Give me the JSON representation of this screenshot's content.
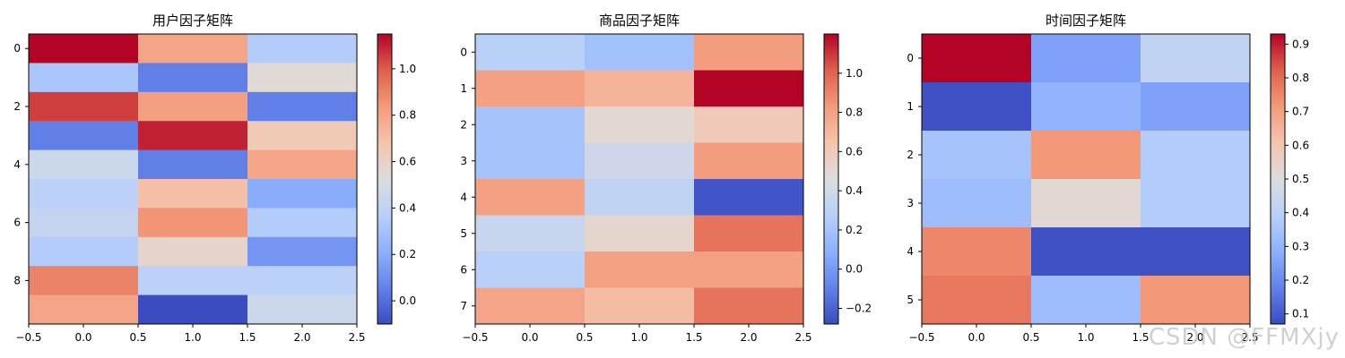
{
  "chart_data": [
    {
      "type": "heatmap",
      "title": "用户因子矩阵",
      "rows": 10,
      "cols": 3,
      "values": [
        [
          1.15,
          0.8,
          0.35
        ],
        [
          0.32,
          0.05,
          0.55
        ],
        [
          1.05,
          0.82,
          0.05
        ],
        [
          0.05,
          1.1,
          0.65
        ],
        [
          0.45,
          0.05,
          0.8
        ],
        [
          0.38,
          0.7,
          0.2
        ],
        [
          0.42,
          0.85,
          0.35
        ],
        [
          0.35,
          0.58,
          0.12
        ],
        [
          0.9,
          0.38,
          0.38
        ],
        [
          0.8,
          -0.1,
          0.45
        ]
      ],
      "vmin": -0.1,
      "vmax": 1.15,
      "x_ticks": [
        "−0.5",
        "0.0",
        "0.5",
        "1.0",
        "1.5",
        "2.0",
        "2.5"
      ],
      "y_ticks": [
        "0",
        "2",
        "4",
        "6",
        "8"
      ],
      "colorbar_ticks": [
        "0.0",
        "0.2",
        "0.4",
        "0.6",
        "0.8",
        "1.0"
      ],
      "colorbar_tick_values": [
        0.0,
        0.2,
        0.4,
        0.6,
        0.8,
        1.0
      ],
      "colormap": "coolwarm"
    },
    {
      "type": "heatmap",
      "title": "商品因子矩阵",
      "rows": 8,
      "cols": 3,
      "values": [
        [
          0.28,
          0.18,
          0.82
        ],
        [
          0.8,
          0.72,
          1.2
        ],
        [
          0.2,
          0.5,
          0.6
        ],
        [
          0.2,
          0.38,
          0.82
        ],
        [
          0.8,
          0.32,
          -0.25
        ],
        [
          0.35,
          0.52,
          0.95
        ],
        [
          0.28,
          0.8,
          0.8
        ],
        [
          0.78,
          0.68,
          0.95
        ]
      ],
      "vmin": -0.28,
      "vmax": 1.2,
      "x_ticks": [
        "−0.5",
        "0.0",
        "0.5",
        "1.0",
        "1.5",
        "2.0",
        "2.5"
      ],
      "y_ticks": [
        "0",
        "1",
        "2",
        "3",
        "4",
        "5",
        "6",
        "7"
      ],
      "colorbar_ticks": [
        "−0.2",
        "0.0",
        "0.2",
        "0.4",
        "0.6",
        "0.8",
        "1.0"
      ],
      "colorbar_tick_values": [
        -0.2,
        0.0,
        0.2,
        0.4,
        0.6,
        0.8,
        1.0
      ],
      "colormap": "coolwarm"
    },
    {
      "type": "heatmap",
      "title": "时间因子矩阵",
      "rows": 6,
      "cols": 3,
      "values": [
        [
          0.93,
          0.25,
          0.42
        ],
        [
          0.08,
          0.3,
          0.25
        ],
        [
          0.35,
          0.72,
          0.38
        ],
        [
          0.33,
          0.52,
          0.38
        ],
        [
          0.75,
          0.08,
          0.08
        ],
        [
          0.78,
          0.33,
          0.72
        ]
      ],
      "vmin": 0.07,
      "vmax": 0.93,
      "x_ticks": [
        "−0.5",
        "0.0",
        "0.5",
        "1.0",
        "1.5",
        "2.0",
        "2.5"
      ],
      "y_ticks": [
        "0",
        "1",
        "2",
        "3",
        "4",
        "5"
      ],
      "colorbar_ticks": [
        "0.1",
        "0.2",
        "0.3",
        "0.4",
        "0.5",
        "0.6",
        "0.7",
        "0.8",
        "0.9"
      ],
      "colorbar_tick_values": [
        0.1,
        0.2,
        0.3,
        0.4,
        0.5,
        0.6,
        0.7,
        0.8,
        0.9
      ],
      "colormap": "coolwarm"
    }
  ],
  "watermark": "CSDN @FFMXjy"
}
